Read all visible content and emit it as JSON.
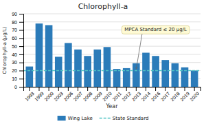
{
  "chart_data": {
    "type": "bar",
    "title": "Chlorophyll-a",
    "xlabel": "Year",
    "ylabel": "Chlorophyll-a (μg/L)",
    "categories": [
      "1993",
      "1999",
      "2000",
      "2003",
      "2006",
      "2007",
      "2008",
      "2009",
      "2010",
      "2011",
      "2012",
      "2013",
      "2014",
      "2016",
      "2017",
      "2018",
      "2019",
      "2020"
    ],
    "series": [
      {
        "name": "Wing Lake",
        "color": "#2B7BB9",
        "values": [
          25,
          78,
          76,
          37,
          54,
          46,
          38,
          46,
          49,
          22,
          23,
          29,
          42,
          38,
          33,
          29,
          24,
          20
        ]
      }
    ],
    "reference_line": {
      "name": "State Standard",
      "value": 20,
      "color": "#4FC3C3",
      "line_style": "dashed"
    },
    "annotations": [
      {
        "text": "MPCA Standard ≤ 20 μg/L"
      }
    ],
    "ylim": [
      0,
      90
    ],
    "yticks": [
      0,
      10,
      20,
      30,
      40,
      50,
      60,
      70,
      80,
      90
    ],
    "grid": true,
    "legend": "bottom"
  }
}
